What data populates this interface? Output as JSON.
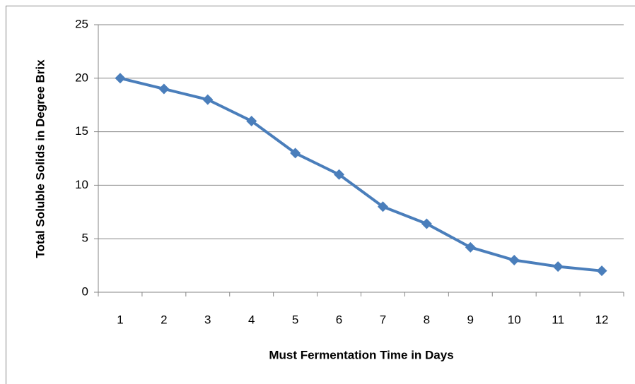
{
  "chart_data": {
    "type": "line",
    "x_label": "Must Fermentation Time in Days",
    "y_label": "Total Soluble Solids in Degree Brix",
    "categories": [
      "1",
      "2",
      "3",
      "4",
      "5",
      "6",
      "7",
      "8",
      "9",
      "10",
      "11",
      "12"
    ],
    "series": [
      {
        "name": "Total Soluble Solids",
        "color": "#4a7ebb",
        "values": [
          20,
          19,
          18,
          16,
          13,
          11,
          8,
          6.4,
          4.2,
          3,
          2.4,
          2
        ]
      }
    ],
    "ylim": [
      0,
      25
    ],
    "yticks": [
      0,
      5,
      10,
      15,
      20,
      25
    ],
    "grid": true,
    "legend": false
  }
}
